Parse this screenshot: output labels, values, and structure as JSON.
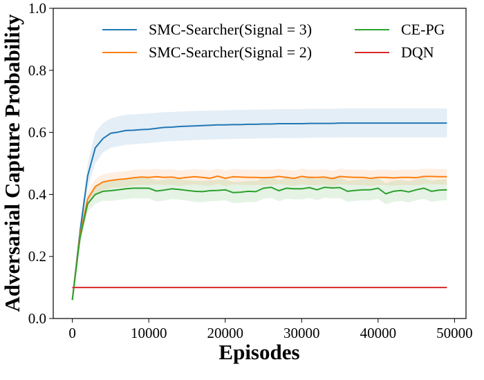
{
  "chart_data": {
    "type": "line",
    "xlabel": "Episodes",
    "ylabel": "Adversarial Capture Probability",
    "xlim": [
      -2500,
      51500
    ],
    "ylim": [
      0.0,
      1.0
    ],
    "xticks": [
      0,
      10000,
      20000,
      30000,
      40000,
      50000
    ],
    "xtick_labels": [
      "0",
      "10000",
      "20000",
      "30000",
      "40000",
      "50000"
    ],
    "yticks": [
      0.0,
      0.2,
      0.4,
      0.6,
      0.8,
      1.0
    ],
    "ytick_labels": [
      "0.0",
      "0.2",
      "0.4",
      "0.6",
      "0.8",
      "1.0"
    ],
    "grid": false,
    "legend_position": "top",
    "legend_columns": 2,
    "x": [
      0,
      1000,
      2000,
      3000,
      4000,
      5000,
      6000,
      7000,
      8000,
      9000,
      10000,
      11000,
      12000,
      13000,
      14000,
      15000,
      16000,
      17000,
      18000,
      19000,
      20000,
      21000,
      22000,
      23000,
      24000,
      25000,
      26000,
      27000,
      28000,
      29000,
      30000,
      31000,
      32000,
      33000,
      34000,
      35000,
      36000,
      37000,
      38000,
      39000,
      40000,
      41000,
      42000,
      43000,
      44000,
      45000,
      46000,
      47000,
      48000,
      49000
    ],
    "series": [
      {
        "name": "SMC-Searcher(Signal = 3)",
        "color": "#1f77b4",
        "values": [
          0.06,
          0.28,
          0.46,
          0.55,
          0.58,
          0.597,
          0.601,
          0.606,
          0.607,
          0.609,
          0.61,
          0.613,
          0.616,
          0.617,
          0.619,
          0.62,
          0.621,
          0.622,
          0.623,
          0.624,
          0.624,
          0.625,
          0.625,
          0.626,
          0.626,
          0.627,
          0.627,
          0.628,
          0.628,
          0.628,
          0.628,
          0.629,
          0.629,
          0.629,
          0.629,
          0.63,
          0.63,
          0.63,
          0.63,
          0.63,
          0.63,
          0.63,
          0.63,
          0.63,
          0.63,
          0.63,
          0.63,
          0.63,
          0.63,
          0.63
        ],
        "upper": [
          0.06,
          0.3,
          0.5,
          0.6,
          0.63,
          0.645,
          0.652,
          0.657,
          0.658,
          0.66,
          0.661,
          0.663,
          0.665,
          0.666,
          0.667,
          0.668,
          0.669,
          0.67,
          0.67,
          0.671,
          0.671,
          0.672,
          0.672,
          0.673,
          0.673,
          0.674,
          0.674,
          0.675,
          0.675,
          0.675,
          0.675,
          0.676,
          0.676,
          0.676,
          0.676,
          0.677,
          0.677,
          0.677,
          0.677,
          0.677,
          0.677,
          0.677,
          0.677,
          0.677,
          0.677,
          0.677,
          0.677,
          0.677,
          0.677,
          0.677
        ],
        "lower": [
          0.06,
          0.26,
          0.42,
          0.5,
          0.535,
          0.55,
          0.555,
          0.56,
          0.562,
          0.564,
          0.565,
          0.568,
          0.571,
          0.572,
          0.573,
          0.574,
          0.575,
          0.576,
          0.577,
          0.578,
          0.578,
          0.579,
          0.579,
          0.58,
          0.58,
          0.581,
          0.581,
          0.582,
          0.582,
          0.582,
          0.582,
          0.583,
          0.583,
          0.583,
          0.583,
          0.584,
          0.584,
          0.584,
          0.584,
          0.584,
          0.584,
          0.584,
          0.584,
          0.584,
          0.584,
          0.584,
          0.584,
          0.584,
          0.584,
          0.584
        ]
      },
      {
        "name": "SMC-Searcher(Signal = 2)",
        "color": "#ff7f0e",
        "values": [
          0.06,
          0.27,
          0.385,
          0.425,
          0.44,
          0.445,
          0.448,
          0.45,
          0.454,
          0.456,
          0.455,
          0.457,
          0.455,
          0.456,
          0.452,
          0.455,
          0.457,
          0.455,
          0.452,
          0.459,
          0.452,
          0.457,
          0.456,
          0.455,
          0.455,
          0.454,
          0.455,
          0.458,
          0.455,
          0.452,
          0.458,
          0.455,
          0.455,
          0.456,
          0.451,
          0.458,
          0.456,
          0.455,
          0.455,
          0.452,
          0.455,
          0.455,
          0.453,
          0.455,
          0.455,
          0.454,
          0.458,
          0.458,
          0.457,
          0.457
        ],
        "upper": [
          0.06,
          0.29,
          0.41,
          0.45,
          0.465,
          0.47,
          0.473,
          0.475,
          0.479,
          0.481,
          0.48,
          0.482,
          0.48,
          0.481,
          0.477,
          0.48,
          0.482,
          0.48,
          0.477,
          0.484,
          0.477,
          0.482,
          0.481,
          0.48,
          0.48,
          0.479,
          0.48,
          0.483,
          0.48,
          0.477,
          0.483,
          0.48,
          0.48,
          0.481,
          0.476,
          0.483,
          0.481,
          0.48,
          0.48,
          0.477,
          0.48,
          0.48,
          0.478,
          0.48,
          0.48,
          0.479,
          0.483,
          0.483,
          0.482,
          0.482
        ],
        "lower": [
          0.06,
          0.25,
          0.36,
          0.4,
          0.415,
          0.42,
          0.423,
          0.425,
          0.429,
          0.431,
          0.43,
          0.432,
          0.43,
          0.431,
          0.427,
          0.43,
          0.432,
          0.43,
          0.427,
          0.434,
          0.427,
          0.432,
          0.431,
          0.43,
          0.43,
          0.429,
          0.43,
          0.433,
          0.43,
          0.427,
          0.433,
          0.43,
          0.43,
          0.431,
          0.426,
          0.433,
          0.431,
          0.43,
          0.43,
          0.427,
          0.43,
          0.43,
          0.428,
          0.43,
          0.43,
          0.429,
          0.433,
          0.433,
          0.432,
          0.432
        ]
      },
      {
        "name": "CE-PG",
        "color": "#2ca02c",
        "values": [
          0.06,
          0.26,
          0.37,
          0.4,
          0.41,
          0.412,
          0.415,
          0.418,
          0.42,
          0.42,
          0.42,
          0.411,
          0.414,
          0.418,
          0.416,
          0.413,
          0.41,
          0.409,
          0.412,
          0.413,
          0.415,
          0.406,
          0.407,
          0.41,
          0.409,
          0.42,
          0.423,
          0.412,
          0.42,
          0.418,
          0.418,
          0.422,
          0.415,
          0.423,
          0.421,
          0.422,
          0.41,
          0.413,
          0.415,
          0.415,
          0.42,
          0.402,
          0.41,
          0.413,
          0.408,
          0.415,
          0.42,
          0.41,
          0.414,
          0.415
        ],
        "upper": [
          0.06,
          0.28,
          0.395,
          0.43,
          0.44,
          0.445,
          0.448,
          0.451,
          0.453,
          0.453,
          0.453,
          0.445,
          0.448,
          0.451,
          0.449,
          0.446,
          0.444,
          0.443,
          0.446,
          0.447,
          0.449,
          0.44,
          0.441,
          0.444,
          0.443,
          0.454,
          0.457,
          0.446,
          0.454,
          0.452,
          0.452,
          0.456,
          0.449,
          0.457,
          0.455,
          0.456,
          0.444,
          0.447,
          0.449,
          0.449,
          0.454,
          0.436,
          0.444,
          0.447,
          0.442,
          0.449,
          0.454,
          0.444,
          0.448,
          0.449
        ],
        "lower": [
          0.06,
          0.24,
          0.345,
          0.37,
          0.38,
          0.379,
          0.382,
          0.385,
          0.387,
          0.387,
          0.387,
          0.377,
          0.38,
          0.385,
          0.383,
          0.38,
          0.376,
          0.375,
          0.378,
          0.379,
          0.381,
          0.372,
          0.373,
          0.376,
          0.375,
          0.386,
          0.389,
          0.378,
          0.386,
          0.384,
          0.384,
          0.388,
          0.381,
          0.389,
          0.387,
          0.388,
          0.376,
          0.379,
          0.381,
          0.381,
          0.386,
          0.368,
          0.376,
          0.379,
          0.374,
          0.381,
          0.386,
          0.376,
          0.38,
          0.381
        ]
      },
      {
        "name": "DQN",
        "color": "#d62728",
        "values": [
          0.1,
          0.1,
          0.1,
          0.1,
          0.1,
          0.1,
          0.1,
          0.1,
          0.1,
          0.1,
          0.1,
          0.1,
          0.1,
          0.1,
          0.1,
          0.1,
          0.1,
          0.1,
          0.1,
          0.1,
          0.1,
          0.1,
          0.1,
          0.1,
          0.1,
          0.1,
          0.1,
          0.1,
          0.1,
          0.1,
          0.1,
          0.1,
          0.1,
          0.1,
          0.1,
          0.1,
          0.1,
          0.1,
          0.1,
          0.1,
          0.1,
          0.1,
          0.1,
          0.1,
          0.1,
          0.1,
          0.1,
          0.1,
          0.1,
          0.1
        ]
      }
    ]
  }
}
